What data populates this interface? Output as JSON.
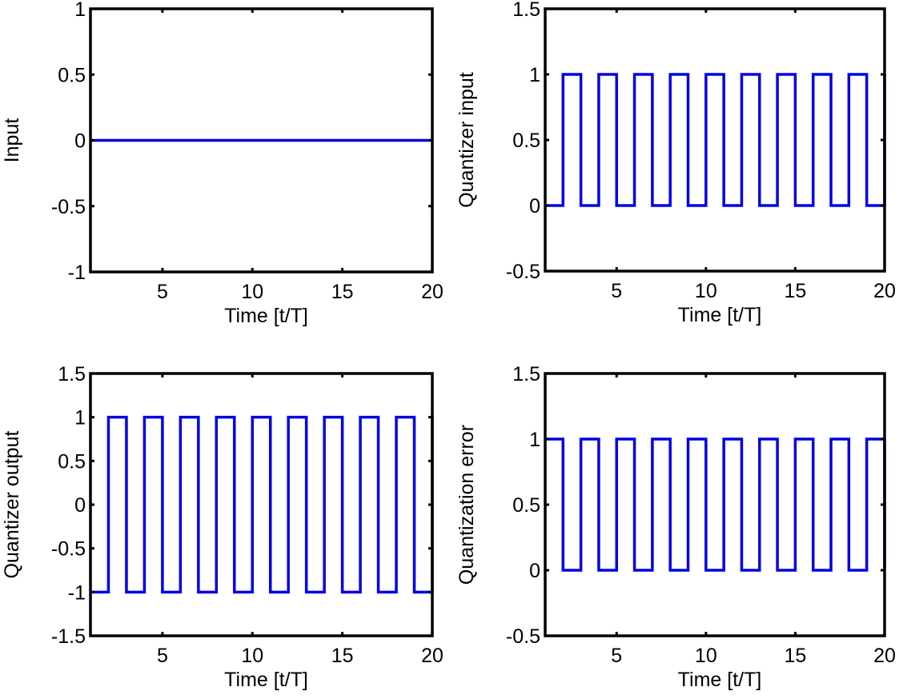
{
  "chart_data": [
    {
      "type": "line",
      "style": "stairs",
      "xlabel": "Time [t/T]",
      "ylabel": "Input",
      "xlim": [
        1,
        20
      ],
      "ylim": [
        -1,
        1
      ],
      "xticks": [
        5,
        10,
        15,
        20
      ],
      "yticks": [
        -1,
        -0.5,
        0,
        0.5,
        1
      ],
      "ytick_labels": [
        "-1",
        "-0.5",
        "0",
        "0.5",
        "1"
      ],
      "grid": false,
      "color": "#0000e6",
      "x": [
        1,
        2,
        3,
        4,
        5,
        6,
        7,
        8,
        9,
        10,
        11,
        12,
        13,
        14,
        15,
        16,
        17,
        18,
        19,
        20
      ],
      "y": [
        0,
        0,
        0,
        0,
        0,
        0,
        0,
        0,
        0,
        0,
        0,
        0,
        0,
        0,
        0,
        0,
        0,
        0,
        0,
        0
      ]
    },
    {
      "type": "line",
      "style": "stairs",
      "xlabel": "Time [t/T]",
      "ylabel": "Quantizer input",
      "xlim": [
        1,
        20
      ],
      "ylim": [
        -0.5,
        1.5
      ],
      "xticks": [
        5,
        10,
        15,
        20
      ],
      "yticks": [
        -0.5,
        0,
        0.5,
        1,
        1.5
      ],
      "ytick_labels": [
        "-0.5",
        "0",
        "0.5",
        "1",
        "1.5"
      ],
      "grid": false,
      "color": "#0000e6",
      "x": [
        1,
        2,
        3,
        4,
        5,
        6,
        7,
        8,
        9,
        10,
        11,
        12,
        13,
        14,
        15,
        16,
        17,
        18,
        19,
        20
      ],
      "y": [
        0,
        1,
        0,
        1,
        0,
        1,
        0,
        1,
        0,
        1,
        0,
        1,
        0,
        1,
        0,
        1,
        0,
        1,
        0,
        1
      ]
    },
    {
      "type": "line",
      "style": "stairs",
      "xlabel": "Time [t/T]",
      "ylabel": "Quantizer output",
      "xlim": [
        1,
        20
      ],
      "ylim": [
        -1.5,
        1.5
      ],
      "xticks": [
        5,
        10,
        15,
        20
      ],
      "yticks": [
        -1.5,
        -1,
        -0.5,
        0,
        0.5,
        1,
        1.5
      ],
      "ytick_labels": [
        "-1.5",
        "-1",
        "-0.5",
        "0",
        "0.5",
        "1",
        "1.5"
      ],
      "grid": false,
      "color": "#0000e6",
      "x": [
        1,
        2,
        3,
        4,
        5,
        6,
        7,
        8,
        9,
        10,
        11,
        12,
        13,
        14,
        15,
        16,
        17,
        18,
        19,
        20
      ],
      "y": [
        -1,
        1,
        -1,
        1,
        -1,
        1,
        -1,
        1,
        -1,
        1,
        -1,
        1,
        -1,
        1,
        -1,
        1,
        -1,
        1,
        -1,
        1
      ]
    },
    {
      "type": "line",
      "style": "stairs",
      "xlabel": "Time [t/T]",
      "ylabel": "Quantization error",
      "xlim": [
        1,
        20
      ],
      "ylim": [
        -0.5,
        1.5
      ],
      "xticks": [
        5,
        10,
        15,
        20
      ],
      "yticks": [
        -0.5,
        0,
        0.5,
        1,
        1.5
      ],
      "ytick_labels": [
        "-0.5",
        "0",
        "0.5",
        "1",
        "1.5"
      ],
      "grid": false,
      "color": "#0000e6",
      "x": [
        1,
        2,
        3,
        4,
        5,
        6,
        7,
        8,
        9,
        10,
        11,
        12,
        13,
        14,
        15,
        16,
        17,
        18,
        19,
        20
      ],
      "y": [
        1,
        0,
        1,
        0,
        1,
        0,
        1,
        0,
        1,
        0,
        1,
        0,
        1,
        0,
        1,
        0,
        1,
        0,
        1,
        0
      ]
    }
  ]
}
